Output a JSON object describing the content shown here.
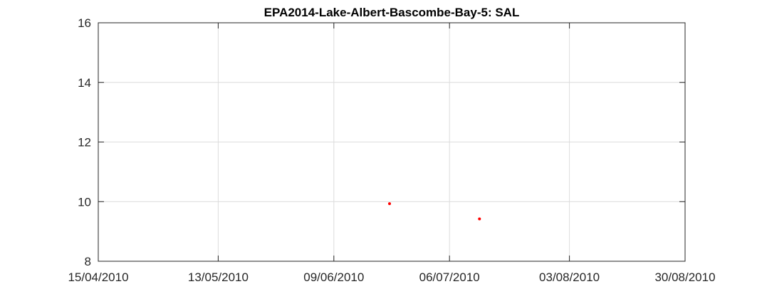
{
  "chart_data": {
    "type": "scatter",
    "title": "EPA2014-Lake-Albert-Bascombe-Bay-5: SAL",
    "xlabel": "",
    "ylabel": "",
    "x_axis_type": "date",
    "xlim": [
      "2010-04-15",
      "2010-08-30"
    ],
    "ylim": [
      8,
      16
    ],
    "x_ticks": [
      {
        "date": "2010-04-15",
        "label": "15/04/2010"
      },
      {
        "date": "2010-05-13",
        "label": "13/05/2010"
      },
      {
        "date": "2010-06-09",
        "label": "09/06/2010"
      },
      {
        "date": "2010-07-06",
        "label": "06/07/2010"
      },
      {
        "date": "2010-08-03",
        "label": "03/08/2010"
      },
      {
        "date": "2010-08-30",
        "label": "30/08/2010"
      }
    ],
    "y_ticks": [
      8,
      10,
      12,
      14,
      16
    ],
    "grid": true,
    "legend": "none",
    "marker_color": "#ff0000",
    "series": [
      {
        "points": [
          {
            "x": "2010-06-22",
            "y": 9.93
          },
          {
            "x": "2010-07-13",
            "y": 9.42
          }
        ]
      }
    ]
  }
}
